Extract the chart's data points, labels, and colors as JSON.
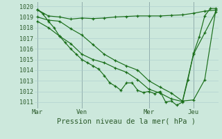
{
  "background_color": "#cce8dc",
  "grid_color": "#aacccc",
  "line_color": "#1a6e1a",
  "title": "Pression niveau de la mer( hPa )",
  "yticks": [
    1011,
    1012,
    1013,
    1014,
    1015,
    1016,
    1017,
    1018,
    1019,
    1020
  ],
  "xtick_labels": [
    "Mar",
    "Ven",
    "Mer",
    "Jeu"
  ],
  "xtick_positions": [
    0,
    8,
    20,
    28
  ],
  "vlines": [
    0,
    8,
    20,
    28
  ],
  "ylim": [
    1010.4,
    1020.4
  ],
  "xlim": [
    -0.5,
    32.5
  ],
  "series": [
    {
      "x": [
        0,
        2,
        4,
        6,
        8,
        10,
        12,
        14,
        16,
        18,
        20,
        22,
        24,
        26,
        28,
        30,
        32
      ],
      "y": [
        1019.7,
        1019.1,
        1019.0,
        1018.8,
        1018.9,
        1018.85,
        1018.9,
        1019.0,
        1019.05,
        1019.1,
        1019.1,
        1019.1,
        1019.15,
        1019.2,
        1019.35,
        1019.55,
        1019.65
      ]
    },
    {
      "x": [
        0,
        2,
        4,
        6,
        8,
        10,
        12,
        14,
        16,
        18,
        20,
        22,
        24,
        26,
        28,
        30,
        32
      ],
      "y": [
        1019.0,
        1018.7,
        1018.6,
        1017.9,
        1017.3,
        1016.4,
        1015.5,
        1014.9,
        1014.4,
        1014.0,
        1013.0,
        1012.4,
        1011.85,
        1011.1,
        1011.2,
        1013.1,
        1019.7
      ]
    },
    {
      "x": [
        0,
        1,
        2,
        3,
        4,
        5,
        6,
        7,
        8,
        9,
        10,
        11,
        12,
        13,
        14,
        15,
        16,
        17,
        18,
        19,
        20,
        21,
        22,
        23,
        24,
        25,
        26,
        27,
        28,
        29,
        30,
        31,
        32
      ],
      "y": [
        1019.7,
        1019.3,
        1018.6,
        1018.0,
        1017.2,
        1016.6,
        1016.0,
        1015.5,
        1015.0,
        1014.7,
        1014.4,
        1014.1,
        1013.5,
        1012.8,
        1012.5,
        1012.1,
        1012.8,
        1012.8,
        1012.1,
        1011.9,
        1012.0,
        1011.8,
        1012.0,
        1011.0,
        1011.1,
        1010.7,
        1011.0,
        1013.1,
        1015.6,
        1017.1,
        1019.1,
        1019.8,
        1019.8
      ]
    },
    {
      "x": [
        0,
        2,
        4,
        6,
        8,
        10,
        12,
        14,
        16,
        18,
        20,
        22,
        24,
        26,
        28,
        30,
        32
      ],
      "y": [
        1018.6,
        1018.0,
        1017.2,
        1016.5,
        1015.5,
        1015.0,
        1014.7,
        1014.2,
        1013.8,
        1013.1,
        1012.2,
        1011.85,
        1011.3,
        1011.05,
        1015.5,
        1017.5,
        1019.5
      ]
    }
  ]
}
